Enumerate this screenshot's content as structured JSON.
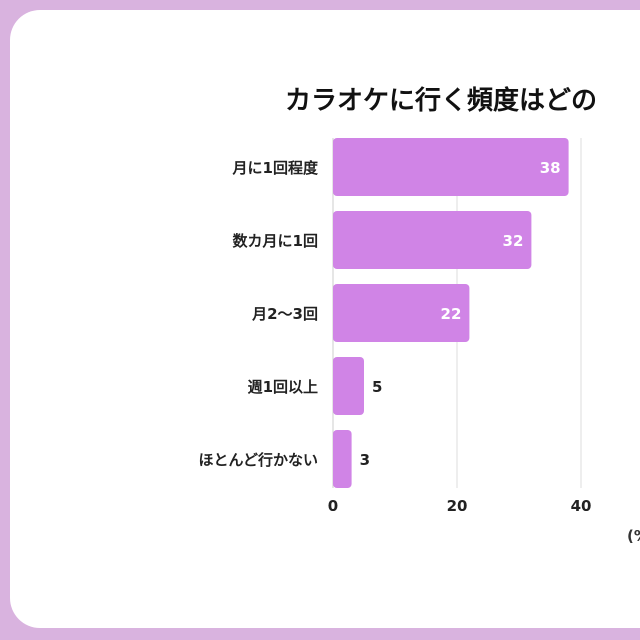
{
  "chart_data": {
    "type": "bar",
    "orientation": "horizontal",
    "title": "カラオケに行く頻度はどの",
    "categories": [
      "月に1回程度",
      "数カ月に1回",
      "月2〜3回",
      "週1回以上",
      "ほとんど行かない"
    ],
    "values": [
      38,
      32,
      22,
      5,
      3
    ],
    "value_labels": [
      "38",
      "32",
      "22",
      "5",
      "3"
    ],
    "xticks": [
      "0",
      "20",
      "40"
    ],
    "xtick_values": [
      0,
      20,
      40
    ],
    "xlim": [
      0,
      50
    ],
    "unit_label": "(%",
    "grid": true,
    "colors": {
      "bar": "#d084e6",
      "page_bg": "#d9b3df",
      "card_bg": "#ffffff",
      "grid": "#dddddd"
    }
  }
}
